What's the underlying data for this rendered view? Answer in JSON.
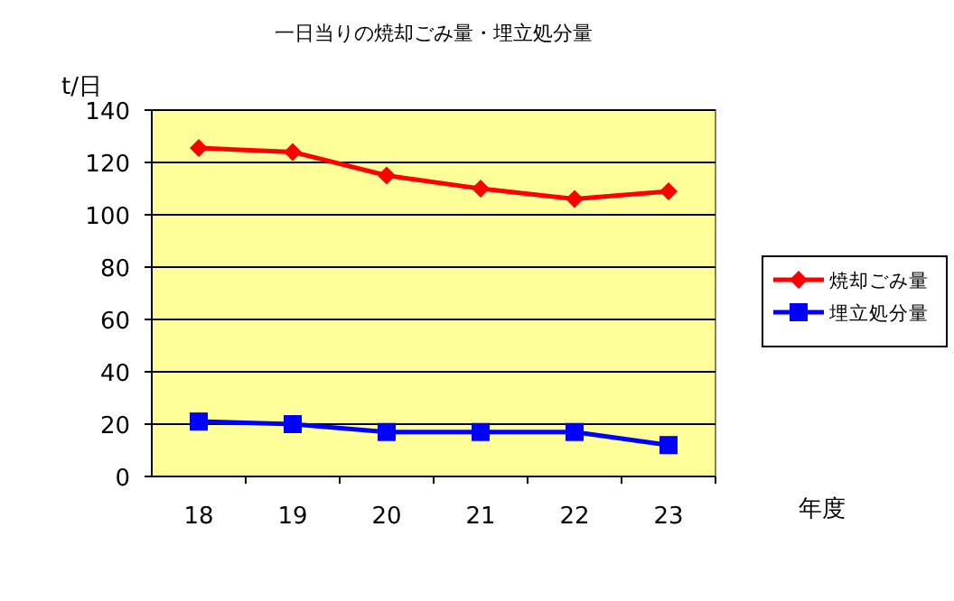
{
  "chart_data": {
    "type": "line",
    "title": "一日当りの焼却ごみ量・埋立処分量",
    "ylabel": "t/日",
    "xlabel": "年度",
    "categories": [
      "18",
      "19",
      "20",
      "21",
      "22",
      "23"
    ],
    "series": [
      {
        "name": "焼却ごみ量",
        "color": "#ff0000",
        "marker": "diamond",
        "values": [
          125.5,
          124,
          115,
          110,
          106,
          109
        ]
      },
      {
        "name": "埋立処分量",
        "color": "#0000ff",
        "marker": "square",
        "values": [
          21,
          20,
          17,
          17,
          17,
          12
        ]
      }
    ],
    "ylim": [
      0,
      140
    ],
    "yticks": [
      0,
      20,
      40,
      60,
      80,
      100,
      120,
      140
    ],
    "grid": "y",
    "legend": "right",
    "line_style": "solid"
  }
}
